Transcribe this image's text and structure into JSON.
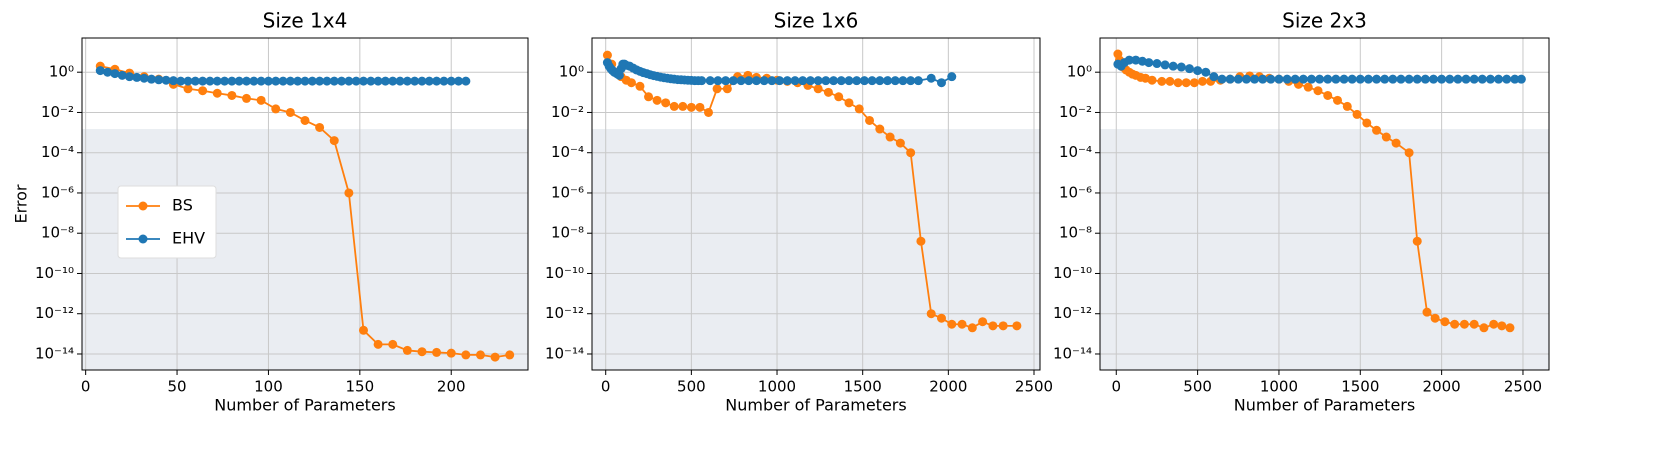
{
  "chart_data": [
    {
      "type": "line",
      "title": "Size 1x4",
      "xlabel": "Number of Parameters",
      "ylabel": "Error",
      "yscale": "log",
      "grid": true,
      "legend": "center left",
      "shade_below": 0.0015,
      "xlim": [
        -2,
        242
      ],
      "ylim": [
        1.6e-15,
        50
      ],
      "xticks": [
        0,
        50,
        100,
        150,
        200
      ],
      "yticks": [
        {
          "value": 1,
          "label": "10⁰"
        },
        {
          "value": 0.01,
          "label": "10⁻²"
        },
        {
          "value": 0.0001,
          "label": "10⁻⁴"
        },
        {
          "value": 1e-06,
          "label": "10⁻⁶"
        },
        {
          "value": 1e-08,
          "label": "10⁻⁸"
        },
        {
          "value": 1e-10,
          "label": "10⁻¹⁰"
        },
        {
          "value": 1e-12,
          "label": "10⁻¹²"
        },
        {
          "value": 1e-14,
          "label": "10⁻¹⁴"
        }
      ],
      "series": [
        {
          "name": "BS",
          "color": "#ff7f0e",
          "x": [
            8,
            16,
            24,
            32,
            40,
            48,
            56,
            64,
            72,
            80,
            88,
            96,
            104,
            112,
            120,
            128,
            136,
            144,
            152,
            160,
            168,
            176,
            184,
            192,
            200,
            208,
            216,
            224,
            232
          ],
          "values": [
            2,
            1.4,
            0.9,
            0.6,
            0.45,
            0.25,
            0.15,
            0.12,
            0.09,
            0.07,
            0.05,
            0.04,
            0.015,
            0.01,
            0.004,
            0.0018,
            0.0004,
            1e-06,
            1.5e-13,
            3e-14,
            3e-14,
            1.5e-14,
            1.3e-14,
            1.2e-14,
            1.1e-14,
            9e-15,
            9e-15,
            7e-15,
            9e-15
          ]
        },
        {
          "name": "EHV",
          "color": "#1f77b4",
          "x": [
            8,
            12,
            16,
            20,
            24,
            28,
            32,
            36,
            40,
            44,
            48,
            52,
            56,
            60,
            64,
            68,
            72,
            76,
            80,
            84,
            88,
            92,
            96,
            100,
            104,
            108,
            112,
            116,
            120,
            124,
            128,
            132,
            136,
            140,
            144,
            148,
            152,
            156,
            160,
            164,
            168,
            172,
            176,
            180,
            184,
            188,
            192,
            196,
            200,
            204,
            208
          ],
          "values": [
            1.2,
            1.0,
            0.85,
            0.7,
            0.6,
            0.55,
            0.5,
            0.45,
            0.42,
            0.4,
            0.38,
            0.36,
            0.36,
            0.36,
            0.36,
            0.36,
            0.36,
            0.36,
            0.36,
            0.36,
            0.36,
            0.36,
            0.36,
            0.36,
            0.36,
            0.36,
            0.36,
            0.36,
            0.36,
            0.36,
            0.36,
            0.36,
            0.36,
            0.36,
            0.36,
            0.36,
            0.36,
            0.36,
            0.36,
            0.36,
            0.36,
            0.36,
            0.36,
            0.36,
            0.36,
            0.36,
            0.36,
            0.36,
            0.36,
            0.36,
            0.36
          ]
        }
      ]
    },
    {
      "type": "line",
      "title": "Size 1x6",
      "xlabel": "Number of Parameters",
      "yscale": "log",
      "grid": true,
      "shade_below": 0.0015,
      "xlim": [
        -80,
        2535
      ],
      "ylim": [
        1.6e-15,
        50
      ],
      "xticks": [
        0,
        500,
        1000,
        1500,
        2000,
        2500
      ],
      "yticks": [
        {
          "value": 1,
          "label": "10⁰"
        },
        {
          "value": 0.01,
          "label": "10⁻²"
        },
        {
          "value": 0.0001,
          "label": "10⁻⁴"
        },
        {
          "value": 1e-06,
          "label": "10⁻⁶"
        },
        {
          "value": 1e-08,
          "label": "10⁻⁸"
        },
        {
          "value": 1e-10,
          "label": "10⁻¹⁰"
        },
        {
          "value": 1e-12,
          "label": "10⁻¹²"
        },
        {
          "value": 1e-14,
          "label": "10⁻¹⁴"
        }
      ],
      "series": [
        {
          "name": "BS",
          "color": "#ff7f0e",
          "x": [
            10,
            35,
            60,
            90,
            120,
            150,
            200,
            250,
            300,
            350,
            400,
            450,
            500,
            550,
            600,
            650,
            710,
            770,
            830,
            880,
            940,
            1000,
            1060,
            1120,
            1180,
            1240,
            1300,
            1360,
            1420,
            1480,
            1540,
            1600,
            1660,
            1720,
            1780,
            1840,
            1900,
            1960,
            2020,
            2080,
            2140,
            2200,
            2260,
            2320,
            2400
          ],
          "values": [
            7,
            2.5,
            1,
            0.6,
            0.4,
            0.3,
            0.2,
            0.06,
            0.04,
            0.03,
            0.02,
            0.02,
            0.018,
            0.018,
            0.01,
            0.15,
            0.15,
            0.6,
            0.7,
            0.55,
            0.5,
            0.4,
            0.35,
            0.3,
            0.22,
            0.15,
            0.1,
            0.06,
            0.03,
            0.015,
            0.004,
            0.0015,
            0.0006,
            0.0003,
            0.0001,
            4e-09,
            1e-12,
            6e-13,
            3e-13,
            3e-13,
            2e-13,
            4e-13,
            2.5e-13,
            2.5e-13,
            2.5e-13
          ]
        },
        {
          "name": "EHV",
          "color": "#1f77b4",
          "x": [
            10,
            20,
            30,
            40,
            50,
            60,
            70,
            80,
            90,
            100,
            110,
            120,
            140,
            160,
            180,
            200,
            220,
            240,
            260,
            280,
            300,
            320,
            340,
            360,
            380,
            400,
            420,
            440,
            460,
            480,
            500,
            520,
            540,
            560,
            610,
            655,
            700,
            745,
            790,
            835,
            880,
            925,
            970,
            1015,
            1060,
            1105,
            1150,
            1195,
            1240,
            1285,
            1330,
            1375,
            1420,
            1465,
            1510,
            1555,
            1600,
            1645,
            1690,
            1735,
            1780,
            1825,
            1900,
            1960,
            2020
          ],
          "values": [
            3,
            2,
            1.5,
            1.2,
            1,
            0.9,
            0.8,
            0.7,
            1.5,
            2.5,
            2.5,
            2.2,
            2,
            1.6,
            1.3,
            1.1,
            0.95,
            0.85,
            0.75,
            0.68,
            0.62,
            0.57,
            0.53,
            0.5,
            0.47,
            0.45,
            0.43,
            0.42,
            0.41,
            0.4,
            0.39,
            0.38,
            0.38,
            0.38,
            0.38,
            0.38,
            0.38,
            0.38,
            0.38,
            0.38,
            0.38,
            0.38,
            0.38,
            0.38,
            0.38,
            0.38,
            0.38,
            0.38,
            0.38,
            0.38,
            0.38,
            0.38,
            0.38,
            0.38,
            0.38,
            0.38,
            0.38,
            0.38,
            0.38,
            0.38,
            0.38,
            0.38,
            0.5,
            0.3,
            0.6
          ]
        }
      ]
    },
    {
      "type": "line",
      "title": "Size 2x3",
      "xlabel": "Number of Parameters",
      "yscale": "log",
      "grid": true,
      "shade_below": 0.0015,
      "xlim": [
        -100,
        2660
      ],
      "ylim": [
        1.6e-15,
        50
      ],
      "xticks": [
        0,
        500,
        1000,
        1500,
        2000,
        2500
      ],
      "yticks": [
        {
          "value": 1,
          "label": "10⁰"
        },
        {
          "value": 0.01,
          "label": "10⁻²"
        },
        {
          "value": 0.0001,
          "label": "10⁻⁴"
        },
        {
          "value": 1e-06,
          "label": "10⁻⁶"
        },
        {
          "value": 1e-08,
          "label": "10⁻⁸"
        },
        {
          "value": 1e-10,
          "label": "10⁻¹⁰"
        },
        {
          "value": 1e-12,
          "label": "10⁻¹²"
        },
        {
          "value": 1e-14,
          "label": "10⁻¹⁴"
        }
      ],
      "series": [
        {
          "name": "BS",
          "color": "#ff7f0e",
          "x": [
            10,
            20,
            30,
            40,
            60,
            80,
            100,
            120,
            150,
            180,
            220,
            280,
            330,
            380,
            430,
            480,
            530,
            580,
            640,
            700,
            760,
            820,
            880,
            940,
            1000,
            1060,
            1120,
            1180,
            1240,
            1300,
            1360,
            1420,
            1480,
            1540,
            1600,
            1660,
            1720,
            1800,
            1850,
            1910,
            1960,
            2020,
            2080,
            2140,
            2200,
            2260,
            2320,
            2370,
            2420
          ],
          "values": [
            8,
            4,
            2.5,
            1.8,
            1.3,
            1,
            0.8,
            0.7,
            0.55,
            0.5,
            0.4,
            0.35,
            0.35,
            0.3,
            0.3,
            0.3,
            0.35,
            0.35,
            0.4,
            0.45,
            0.6,
            0.65,
            0.6,
            0.5,
            0.45,
            0.35,
            0.25,
            0.18,
            0.12,
            0.07,
            0.04,
            0.02,
            0.008,
            0.003,
            0.0013,
            0.0006,
            0.0003,
            0.0001,
            4e-09,
            1.2e-12,
            6e-13,
            4e-13,
            3e-13,
            3e-13,
            3e-13,
            2e-13,
            3e-13,
            2.5e-13,
            2e-13
          ]
        },
        {
          "name": "EHV",
          "color": "#1f77b4",
          "x": [
            10,
            30,
            50,
            80,
            120,
            160,
            200,
            250,
            300,
            350,
            400,
            450,
            500,
            550,
            600,
            650,
            700,
            750,
            800,
            850,
            900,
            950,
            1000,
            1050,
            1100,
            1150,
            1200,
            1250,
            1300,
            1350,
            1400,
            1450,
            1500,
            1550,
            1600,
            1650,
            1700,
            1750,
            1800,
            1850,
            1900,
            1950,
            2000,
            2050,
            2100,
            2150,
            2200,
            2250,
            2300,
            2350,
            2400,
            2450,
            2490
          ],
          "values": [
            2.5,
            2,
            3,
            4,
            4,
            3.5,
            3,
            2.7,
            2.3,
            2,
            1.8,
            1.5,
            1.2,
            1,
            0.6,
            0.45,
            0.45,
            0.45,
            0.45,
            0.45,
            0.45,
            0.45,
            0.45,
            0.45,
            0.45,
            0.45,
            0.45,
            0.45,
            0.45,
            0.45,
            0.45,
            0.45,
            0.45,
            0.45,
            0.45,
            0.45,
            0.45,
            0.45,
            0.45,
            0.45,
            0.45,
            0.45,
            0.45,
            0.45,
            0.45,
            0.45,
            0.45,
            0.45,
            0.45,
            0.45,
            0.45,
            0.45,
            0.45
          ]
        }
      ]
    }
  ]
}
